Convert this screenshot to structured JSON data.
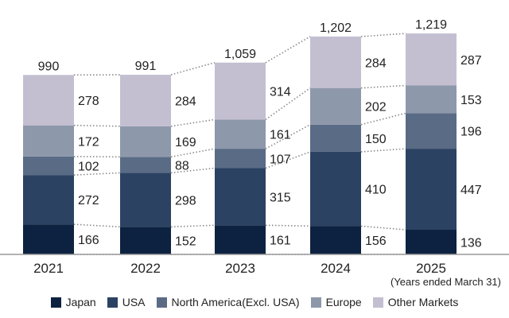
{
  "chart_data": {
    "type": "bar",
    "stacked": true,
    "categories": [
      "2021",
      "2022",
      "2023",
      "2024",
      "2025"
    ],
    "series": [
      {
        "name": "Japan",
        "values": [
          166,
          152,
          161,
          156,
          136
        ],
        "color": "#0d2240"
      },
      {
        "name": "USA",
        "values": [
          272,
          298,
          315,
          410,
          447
        ],
        "color": "#2b4263"
      },
      {
        "name": "North America(Excl. USA)",
        "values": [
          102,
          88,
          107,
          150,
          196
        ],
        "color": "#5a6b86"
      },
      {
        "name": "Europe",
        "values": [
          172,
          169,
          161,
          202,
          153
        ],
        "color": "#8e98ab"
      },
      {
        "name": "Other Markets",
        "values": [
          278,
          284,
          314,
          284,
          287
        ],
        "color": "#c3bfd1"
      }
    ],
    "totals": [
      "990",
      "991",
      "1,059",
      "1,202",
      "1,219"
    ],
    "note": "(Years ended March 31)",
    "ylim": [
      0,
      1250
    ],
    "grid": false,
    "legend_position": "bottom",
    "connector_lines": "dotted"
  }
}
